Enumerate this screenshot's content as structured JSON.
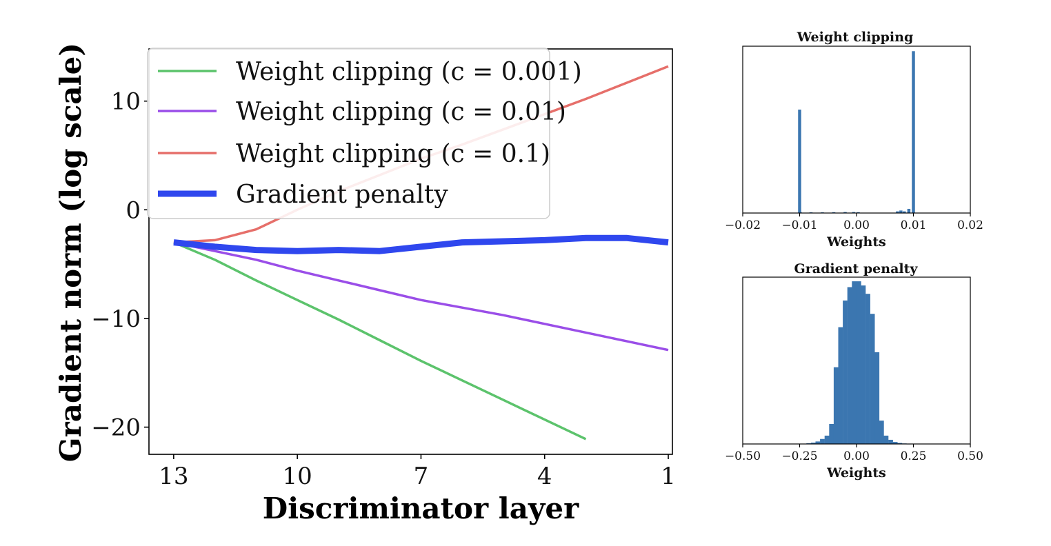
{
  "chart_data": [
    {
      "type": "line",
      "title": "",
      "xlabel": "Discriminator layer",
      "ylabel": "Gradient norm (log scale)",
      "x_ticks": [
        13,
        10,
        7,
        4,
        1
      ],
      "x_direction": "reversed",
      "xlim": [
        13.6,
        0.9
      ],
      "y_ticks": [
        10,
        0,
        -10,
        -20
      ],
      "y_tick_labels": [
        "10",
        "0",
        "−10",
        "−20"
      ],
      "ylim": [
        -22.5,
        14.8
      ],
      "legend_location": "upper-left",
      "series": [
        {
          "name": "Weight clipping (c = 0.001)",
          "color": "#5cc36c",
          "width": "thin",
          "x": [
            13,
            12,
            11,
            10,
            9,
            8,
            7,
            6,
            5,
            4,
            3
          ],
          "y": [
            -3.0,
            -4.6,
            -6.5,
            -8.3,
            -10.1,
            -12.0,
            -13.9,
            -15.7,
            -17.5,
            -19.3,
            -21.1
          ]
        },
        {
          "name": "Weight clipping (c = 0.01)",
          "color": "#9a4ee8",
          "width": "thin",
          "x": [
            13,
            12,
            11,
            10,
            9,
            8,
            7,
            6,
            5,
            4,
            3,
            2,
            1
          ],
          "y": [
            -3.0,
            -3.8,
            -4.6,
            -5.6,
            -6.5,
            -7.4,
            -8.3,
            -9.0,
            -9.7,
            -10.5,
            -11.3,
            -12.1,
            -12.9
          ]
        },
        {
          "name": "Weight clipping (c = 0.1)",
          "color": "#e66f6a",
          "width": "thin",
          "x": [
            13,
            12,
            11,
            10,
            9,
            8,
            7,
            6,
            5,
            4,
            3,
            2,
            1
          ],
          "y": [
            -3.0,
            -2.8,
            -1.8,
            0.0,
            1.7,
            3.2,
            4.7,
            6.0,
            7.4,
            8.8,
            10.2,
            11.7,
            13.2
          ]
        },
        {
          "name": "Gradient penalty",
          "color": "#2f47ee",
          "width": "thick",
          "x": [
            13,
            12,
            11,
            10,
            9,
            8,
            7,
            6,
            5,
            4,
            3,
            2,
            1
          ],
          "y": [
            -3.0,
            -3.4,
            -3.7,
            -3.8,
            -3.7,
            -3.8,
            -3.4,
            -3.0,
            -2.9,
            -2.8,
            -2.6,
            -2.6,
            -3.0
          ]
        }
      ]
    },
    {
      "type": "bar",
      "title": "Weight clipping",
      "xlabel": "Weights",
      "ylabel": "",
      "xlim": [
        -0.02,
        0.02
      ],
      "x_ticks": [
        -0.02,
        -0.01,
        0.0,
        0.01,
        0.02
      ],
      "x_tick_labels": [
        "−0.02",
        "−0.01",
        "0.00",
        "0.01",
        "0.02"
      ],
      "ylim": [
        0,
        1.0
      ],
      "color": "#3b76b0",
      "bins": [
        {
          "x": -0.01,
          "value": 0.62
        },
        {
          "x": -0.0099,
          "value": 0.005
        },
        {
          "x": -0.008,
          "value": 0.004
        },
        {
          "x": -0.006,
          "value": 0.004
        },
        {
          "x": -0.004,
          "value": 0.005
        },
        {
          "x": -0.002,
          "value": 0.006
        },
        {
          "x": -0.0005,
          "value": 0.006
        },
        {
          "x": 0.0003,
          "value": 0.005
        },
        {
          "x": 0.0072,
          "value": 0.01
        },
        {
          "x": 0.0078,
          "value": 0.015
        },
        {
          "x": 0.0084,
          "value": 0.01
        },
        {
          "x": 0.0092,
          "value": 0.025
        },
        {
          "x": 0.01,
          "value": 0.97
        }
      ]
    },
    {
      "type": "bar",
      "title": "Gradient penalty",
      "xlabel": "Weights",
      "ylabel": "",
      "xlim": [
        -0.5,
        0.5
      ],
      "x_ticks": [
        -0.5,
        -0.25,
        0.0,
        0.25,
        0.5
      ],
      "x_tick_labels": [
        "−0.50",
        "−0.25",
        "0.00",
        "0.25",
        "0.50"
      ],
      "ylim": [
        0,
        1.0
      ],
      "color": "#3b76b0",
      "bins": [
        {
          "x": -0.23,
          "value": 0.002
        },
        {
          "x": -0.21,
          "value": 0.004
        },
        {
          "x": -0.19,
          "value": 0.008
        },
        {
          "x": -0.17,
          "value": 0.015
        },
        {
          "x": -0.15,
          "value": 0.03
        },
        {
          "x": -0.13,
          "value": 0.05
        },
        {
          "x": -0.11,
          "value": 0.12
        },
        {
          "x": -0.09,
          "value": 0.46
        },
        {
          "x": -0.07,
          "value": 0.7
        },
        {
          "x": -0.05,
          "value": 0.86
        },
        {
          "x": -0.03,
          "value": 0.94
        },
        {
          "x": -0.01,
          "value": 0.975
        },
        {
          "x": 0.01,
          "value": 0.975
        },
        {
          "x": 0.03,
          "value": 0.95
        },
        {
          "x": 0.05,
          "value": 0.9
        },
        {
          "x": 0.07,
          "value": 0.78
        },
        {
          "x": 0.09,
          "value": 0.55
        },
        {
          "x": 0.11,
          "value": 0.14
        },
        {
          "x": 0.13,
          "value": 0.05
        },
        {
          "x": 0.15,
          "value": 0.025
        },
        {
          "x": 0.17,
          "value": 0.012
        },
        {
          "x": 0.19,
          "value": 0.006
        },
        {
          "x": 0.21,
          "value": 0.003
        },
        {
          "x": 0.23,
          "value": 0.001
        }
      ]
    }
  ]
}
